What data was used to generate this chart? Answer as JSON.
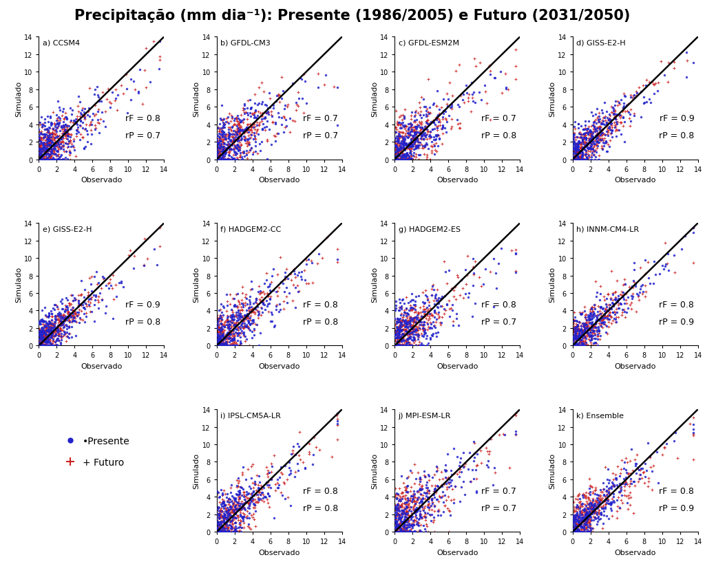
{
  "title": "Precipitação (mm dia⁻¹): Presente (1986/2005) e Futuro (2031/2050)",
  "panels": [
    {
      "label": "a) CCSM4",
      "rF": 0.8,
      "rP": 0.7
    },
    {
      "label": "b) GFDL-CM3",
      "rF": 0.7,
      "rP": 0.7
    },
    {
      "label": "c) GFDL-ESM2M",
      "rF": 0.7,
      "rP": 0.8
    },
    {
      "label": "d) GISS-E2-H",
      "rF": 0.9,
      "rP": 0.8
    },
    {
      "label": "e) GISS-E2-H",
      "rF": 0.9,
      "rP": 0.8
    },
    {
      "label": "f) HADGEM2-CC",
      "rF": 0.8,
      "rP": 0.8
    },
    {
      "label": "g) HADGEM2-ES",
      "rF": 0.8,
      "rP": 0.7
    },
    {
      "label": "h) INNM-CM4-LR",
      "rF": 0.8,
      "rP": 0.9
    },
    {
      "label": "i) IPSL-CM5A-LR",
      "rF": 0.8,
      "rP": 0.8
    },
    {
      "label": "j) MPI-ESM-LR",
      "rF": 0.7,
      "rP": 0.7
    },
    {
      "label": "k) Ensemble",
      "rF": 0.8,
      "rP": 0.9
    }
  ],
  "n_points": 350,
  "xlim": [
    0,
    14
  ],
  "ylim": [
    0,
    14
  ],
  "xticks": [
    0,
    2,
    4,
    6,
    8,
    10,
    12,
    14
  ],
  "yticks": [
    0,
    2,
    4,
    6,
    8,
    10,
    12,
    14
  ],
  "xlabel": "Observado",
  "ylabel": "Simulado",
  "presente_color": "#2222cc",
  "futuro_color": "#cc2222",
  "dot_size_present": 6,
  "dot_size_future": 7,
  "legend_presente": "Presente",
  "legend_futuro": "Futuro",
  "title_fontsize": 15,
  "axis_label_fontsize": 8,
  "tick_fontsize": 7,
  "panel_label_fontsize": 8,
  "annotation_fontsize": 9
}
